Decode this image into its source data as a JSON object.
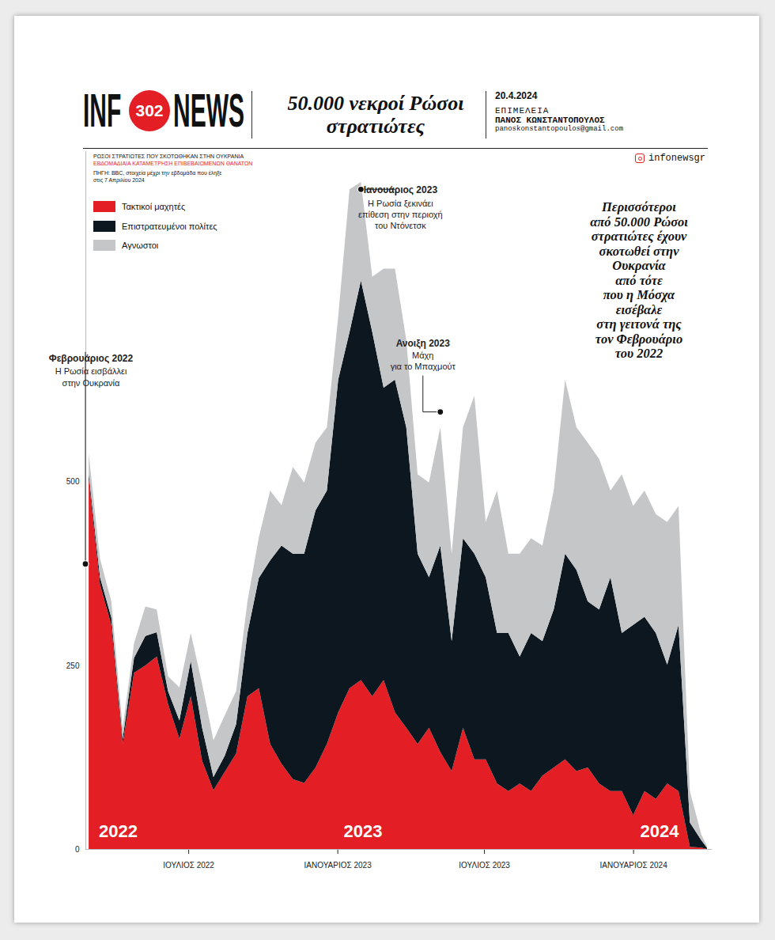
{
  "header": {
    "logo": [
      "INF",
      "302",
      "NEWS"
    ],
    "date": "20.4.2024",
    "editor_label": "ΕΠΙΜΕΛΕΙΑ",
    "editor": "ΠΑΝΟΣ ΚΩΝΣΤΑΝΤΟΠΟΥΛΟΣ",
    "email": "panoskonstantopoulos@gmail.com",
    "instagram": "infonewsgr"
  },
  "chart_data": {
    "type": "area",
    "stacked": true,
    "title": "50.000 νεκροί Ρώσοι στρατιώτες",
    "subtitle": "ΡΩΣΟΙ ΣΤΡΑΤΙΩΤΕΣ ΠΟΥ ΣΚΟΤΩΘΗΚΑΝ ΣΤΗΝ ΟΥΚΡΑΝΙΑ",
    "subtitle_note": "ΕΒΔΟΜΑΔΙΑΙΑ ΚΑΤΑΜΕΤΡΗΣΗ ΕΠΙΒΕΒΑΙΩΜΕΝΩΝ ΘΑΝΑΤΩΝ",
    "source": "ΠΗΓΗ: BBC, στοιχεία μέχρι την εβδομάδα που έληξε στις 7 Απριλίου 2024",
    "legend": "top-left",
    "callout": [
      "Περισσότεροι",
      "από 50.000 Ρώσοι",
      "στρατιώτες έχουν",
      "σκοτωθεί στην",
      "Ουκρανία",
      "από τότε",
      "που η Μόσχα",
      "εισέβαλε",
      "στη γειτονά της",
      "τον Φεβρουάριο",
      "του 2022"
    ],
    "x": [
      "2022-02-28",
      "2022-03-14",
      "2022-03-28",
      "2022-04-11",
      "2022-04-25",
      "2022-05-09",
      "2022-05-23",
      "2022-06-06",
      "2022-06-20",
      "2022-07-04",
      "2022-07-18",
      "2022-08-01",
      "2022-08-15",
      "2022-08-29",
      "2022-09-12",
      "2022-09-26",
      "2022-10-10",
      "2022-10-24",
      "2022-11-07",
      "2022-11-21",
      "2022-12-05",
      "2022-12-19",
      "2023-01-02",
      "2023-01-16",
      "2023-01-30",
      "2023-02-13",
      "2023-02-27",
      "2023-03-13",
      "2023-03-27",
      "2023-04-10",
      "2023-04-24",
      "2023-05-08",
      "2023-05-22",
      "2023-06-05",
      "2023-06-19",
      "2023-07-03",
      "2023-07-17",
      "2023-07-31",
      "2023-08-14",
      "2023-08-28",
      "2023-09-11",
      "2023-09-25",
      "2023-10-09",
      "2023-10-23",
      "2023-11-06",
      "2023-11-20",
      "2023-12-04",
      "2023-12-18",
      "2024-01-01",
      "2024-01-15",
      "2024-01-29",
      "2024-02-12",
      "2024-02-26",
      "2024-03-11",
      "2024-03-25",
      "2024-04-01"
    ],
    "series": [
      {
        "name": "Τακτικοί μαχητές",
        "color": "#e31e24",
        "values": [
          505,
          360,
          305,
          143,
          240,
          250,
          262,
          197,
          150,
          208,
          120,
          80,
          105,
          130,
          208,
          219,
          143,
          116,
          95,
          90,
          111,
          143,
          186,
          219,
          230,
          208,
          230,
          186,
          165,
          143,
          165,
          132,
          106,
          165,
          122,
          122,
          89,
          79,
          89,
          79,
          100,
          111,
          122,
          106,
          111,
          89,
          79,
          79,
          46,
          79,
          68,
          89,
          79,
          3,
          2,
          0
        ]
      },
      {
        "name": "Επιστρατευμένοι πολίτες",
        "color": "#0d1720",
        "values": [
          7,
          10,
          10,
          7,
          20,
          40,
          33,
          18,
          25,
          48,
          45,
          18,
          22,
          40,
          86,
          150,
          250,
          297,
          307,
          312,
          350,
          345,
          453,
          485,
          544,
          496,
          398,
          453,
          409,
          259,
          205,
          281,
          177,
          258,
          280,
          248,
          205,
          215,
          173,
          215,
          183,
          215,
          280,
          274,
          226,
          237,
          291,
          215,
          259,
          237,
          226,
          162,
          226,
          33,
          10,
          2
        ]
      },
      {
        "name": "Αγνωστοι",
        "color": "#c4c6c8",
        "values": [
          27,
          25,
          22,
          15,
          20,
          40,
          31,
          20,
          45,
          38,
          60,
          50,
          55,
          45,
          43,
          55,
          95,
          55,
          118,
          97,
          92,
          86,
          86,
          194,
          134,
          75,
          162,
          151,
          119,
          108,
          129,
          161,
          119,
          151,
          215,
          75,
          194,
          108,
          140,
          129,
          130,
          162,
          237,
          194,
          216,
          205,
          118,
          216,
          162,
          172,
          162,
          194,
          162,
          43,
          8,
          2
        ]
      }
    ],
    "xlim": [
      "2022-02-24",
      "2024-04-07"
    ],
    "xticks": [
      {
        "value": "2022-07-01",
        "label": "ΙΟΥΛΙΟΣ 2022"
      },
      {
        "value": "2023-01-01",
        "label": "ΙΑΝΟΥΑΡΙΟΣ 2023"
      },
      {
        "value": "2023-07-01",
        "label": "ΙΟΥΛΙΟΣ 2023"
      },
      {
        "value": "2024-01-01",
        "label": "ΙΑΝΟΥΑΡΙΟΣ 2024"
      }
    ],
    "ylim": [
      0,
      950
    ],
    "yticks": [
      0,
      250,
      500
    ],
    "year_labels": [
      {
        "x": "2022-04-05",
        "label": "2022"
      },
      {
        "x": "2023-02-01",
        "label": "2023"
      },
      {
        "x": "2024-02-02",
        "label": "2024"
      }
    ],
    "annotations": [
      {
        "x": "2022-02-24",
        "y": 388,
        "title": "Φεβρουάριος 2022",
        "lines": [
          "Η Ρωσία εισβάλλει",
          "στην Ουκρανία"
        ]
      },
      {
        "x": "2023-01-30",
        "y": 898,
        "title": "Ιανουάριος 2023",
        "lines": [
          "Η Ρωσία ξεκινάει",
          "επίθεση στην περιοχή",
          "του Ντόνετσκ"
        ]
      },
      {
        "x": "2023-05-08",
        "y": 595,
        "title": "Ανοιξη 2023",
        "lines": [
          "Μάχη",
          "για το Μπαχμούτ"
        ]
      }
    ]
  }
}
